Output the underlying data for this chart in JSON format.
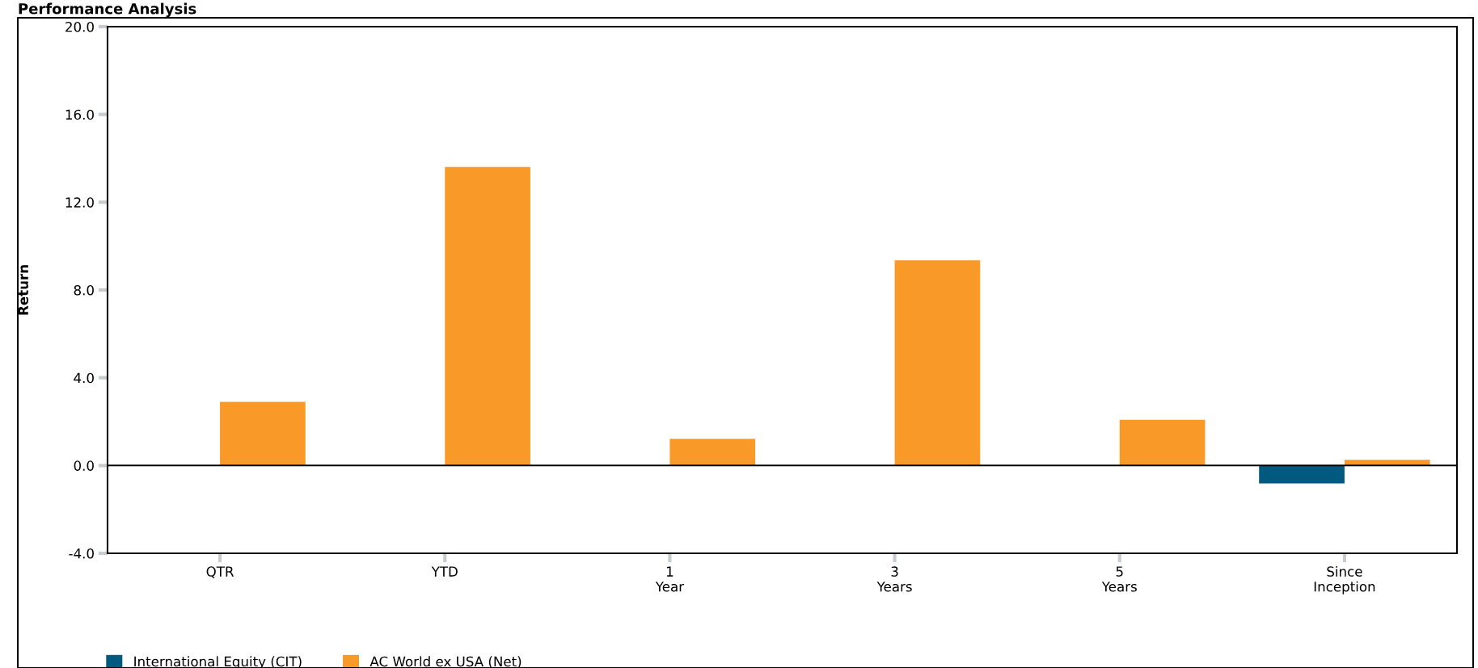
{
  "chart_data": {
    "type": "bar",
    "title": "Performance Analysis",
    "ylabel": "Return",
    "categories": [
      "QTR",
      "YTD",
      "1\nYear",
      "3\nYears",
      "5\nYears",
      "Since\nInception"
    ],
    "series": [
      {
        "name": "International Equity (CIT)",
        "color": "#005a7f",
        "values": [
          null,
          null,
          null,
          null,
          null,
          -0.82
        ]
      },
      {
        "name": "AC World ex USA (Net)",
        "color": "#f99927",
        "values": [
          2.9,
          13.6,
          1.22,
          9.35,
          2.08,
          0.26
        ]
      }
    ],
    "ylim": [
      -4.0,
      20.0
    ],
    "yticks": [
      {
        "value": -4,
        "label": "-4.0"
      },
      {
        "value": 0,
        "label": "0.0"
      },
      {
        "value": 4,
        "label": "4.0"
      },
      {
        "value": 8,
        "label": "8.0"
      },
      {
        "value": 12,
        "label": "12.0"
      },
      {
        "value": 16,
        "label": "16.0"
      },
      {
        "value": 20,
        "label": "20.0"
      }
    ],
    "ref_lines": [
      {
        "axis": "y",
        "value": 0,
        "color": "#000000"
      }
    ],
    "grid": false,
    "legend": "bottom left"
  }
}
